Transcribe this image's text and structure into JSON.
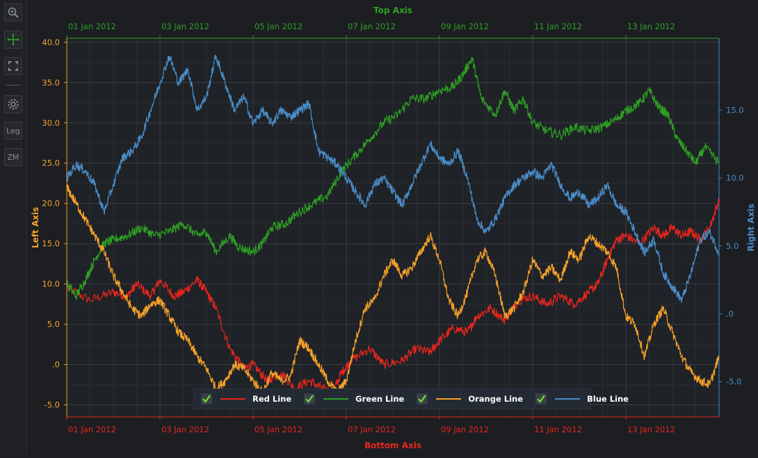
{
  "toolbar": {
    "buttons": [
      {
        "icon": "zoom-icon",
        "label": ""
      },
      {
        "icon": "pan-icon",
        "label": ""
      },
      {
        "icon": "fit-icon",
        "label": ""
      },
      {
        "icon": "gear-icon",
        "label": ""
      },
      {
        "icon": "legend-toggle",
        "label": "Leg"
      },
      {
        "icon": "zoom-mode-toggle",
        "label": "ZM"
      }
    ]
  },
  "colors": {
    "red": "#e8261e",
    "green": "#2ea024",
    "orange": "#f5a12b",
    "blue": "#4a8cc9",
    "background": "#1c1e22",
    "grid": "#3a3d42"
  },
  "chart_data": {
    "type": "line",
    "x_unit": "days",
    "x_range": [
      0,
      14
    ],
    "top_axis": {
      "title": "Top Axis",
      "color": "#2ea024"
    },
    "bottom_axis": {
      "title": "Bottom Axis",
      "color": "#e8261e"
    },
    "left_axis": {
      "title": "Left Axis",
      "color": "#f5a12b",
      "range": [
        -6.5,
        40.5
      ]
    },
    "right_axis": {
      "title": "Right Axis",
      "color": "#4a8cc9",
      "range": [
        -7.6,
        20.3
      ]
    },
    "x_ticks": [
      {
        "x": 0,
        "label": "01 Jan 2012"
      },
      {
        "x": 2,
        "label": "03 Jan 2012"
      },
      {
        "x": 4,
        "label": "05 Jan 2012"
      },
      {
        "x": 6,
        "label": "07 Jan 2012"
      },
      {
        "x": 8,
        "label": "09 Jan 2012"
      },
      {
        "x": 10,
        "label": "11 Jan 2012"
      },
      {
        "x": 12,
        "label": "13 Jan 2012"
      }
    ],
    "left_ticks": [
      {
        "v": -5,
        "label": "-5.0"
      },
      {
        "v": 0,
        "label": ".0"
      },
      {
        "v": 5,
        "label": "5.0"
      },
      {
        "v": 10,
        "label": "10.0"
      },
      {
        "v": 15,
        "label": "15.0"
      },
      {
        "v": 20,
        "label": "20.0"
      },
      {
        "v": 25,
        "label": "25.0"
      },
      {
        "v": 30,
        "label": "30.0"
      },
      {
        "v": 35,
        "label": "35.0"
      },
      {
        "v": 40,
        "label": "40.0"
      }
    ],
    "right_ticks": [
      {
        "v": -5,
        "label": "-5.0"
      },
      {
        "v": 0,
        "label": ".0"
      },
      {
        "v": 5,
        "label": "5.0"
      },
      {
        "v": 10,
        "label": "10.0"
      },
      {
        "v": 15,
        "label": "15.0"
      }
    ],
    "series": [
      {
        "name": "Red Line",
        "color": "#e8261e",
        "axis": "left",
        "values": [
          [
            0,
            9.5
          ],
          [
            0.5,
            8
          ],
          [
            1,
            9
          ],
          [
            1.3,
            8.5
          ],
          [
            1.5,
            10
          ],
          [
            1.8,
            8.5
          ],
          [
            2,
            10.5
          ],
          [
            2.3,
            8.5
          ],
          [
            2.5,
            9
          ],
          [
            2.8,
            10.5
          ],
          [
            3,
            9
          ],
          [
            3.2,
            7
          ],
          [
            3.5,
            2
          ],
          [
            3.8,
            -0.5
          ],
          [
            4,
            0
          ],
          [
            4.3,
            -2
          ],
          [
            4.6,
            -1
          ],
          [
            4.9,
            -3
          ],
          [
            5.2,
            -2
          ],
          [
            5.5,
            -3
          ],
          [
            5.7,
            -3.5
          ],
          [
            5.9,
            -1
          ],
          [
            6.1,
            0.5
          ],
          [
            6.5,
            2
          ],
          [
            6.8,
            0
          ],
          [
            7.2,
            0.5
          ],
          [
            7.5,
            2
          ],
          [
            7.8,
            1.5
          ],
          [
            8,
            3
          ],
          [
            8.3,
            4.5
          ],
          [
            8.6,
            4
          ],
          [
            8.8,
            6
          ],
          [
            9.1,
            7
          ],
          [
            9.4,
            5.5
          ],
          [
            9.7,
            8
          ],
          [
            10,
            8.5
          ],
          [
            10.3,
            7.5
          ],
          [
            10.6,
            8.5
          ],
          [
            10.9,
            7.5
          ],
          [
            11.2,
            9
          ],
          [
            11.4,
            10
          ],
          [
            11.6,
            13
          ],
          [
            11.8,
            15.5
          ],
          [
            12,
            16
          ],
          [
            12.3,
            15
          ],
          [
            12.6,
            17
          ],
          [
            12.8,
            16
          ],
          [
            13,
            17
          ],
          [
            13.2,
            16
          ],
          [
            13.4,
            16.5
          ],
          [
            13.6,
            15.5
          ],
          [
            13.8,
            17
          ],
          [
            14,
            20.5
          ]
        ]
      },
      {
        "name": "Green Line",
        "color": "#2ea024",
        "axis": "left",
        "values": [
          [
            0,
            10
          ],
          [
            0.2,
            8.5
          ],
          [
            0.4,
            10.5
          ],
          [
            0.6,
            13
          ],
          [
            0.8,
            15
          ],
          [
            1,
            15.5
          ],
          [
            1.3,
            16
          ],
          [
            1.6,
            17
          ],
          [
            1.9,
            16
          ],
          [
            2.2,
            16.5
          ],
          [
            2.5,
            17.5
          ],
          [
            2.8,
            16
          ],
          [
            3,
            16.5
          ],
          [
            3.2,
            14
          ],
          [
            3.5,
            16
          ],
          [
            3.7,
            14.5
          ],
          [
            4,
            14
          ],
          [
            4.2,
            15
          ],
          [
            4.4,
            17
          ],
          [
            4.7,
            17.5
          ],
          [
            5,
            19
          ],
          [
            5.3,
            20
          ],
          [
            5.6,
            21
          ],
          [
            5.9,
            24
          ],
          [
            6.2,
            26
          ],
          [
            6.5,
            28
          ],
          [
            6.8,
            30
          ],
          [
            7.1,
            31
          ],
          [
            7.4,
            33
          ],
          [
            7.7,
            33
          ],
          [
            8,
            34
          ],
          [
            8.3,
            34.5
          ],
          [
            8.5,
            36
          ],
          [
            8.7,
            38
          ],
          [
            8.9,
            33
          ],
          [
            9.2,
            31
          ],
          [
            9.4,
            34
          ],
          [
            9.6,
            31.5
          ],
          [
            9.8,
            33
          ],
          [
            10,
            30
          ],
          [
            10.3,
            29
          ],
          [
            10.6,
            28.5
          ],
          [
            10.9,
            29.5
          ],
          [
            11.2,
            29
          ],
          [
            11.5,
            29.5
          ],
          [
            11.8,
            30.5
          ],
          [
            12,
            31.5
          ],
          [
            12.3,
            32.5
          ],
          [
            12.5,
            34
          ],
          [
            12.7,
            32
          ],
          [
            12.9,
            31
          ],
          [
            13.1,
            28
          ],
          [
            13.3,
            26.5
          ],
          [
            13.5,
            25
          ],
          [
            13.7,
            27
          ],
          [
            14,
            25
          ]
        ]
      },
      {
        "name": "Orange Line",
        "color": "#f5a12b",
        "axis": "left",
        "values": [
          [
            0,
            22
          ],
          [
            0.2,
            20
          ],
          [
            0.4,
            18
          ],
          [
            0.6,
            16
          ],
          [
            0.8,
            14
          ],
          [
            1,
            11
          ],
          [
            1.2,
            9
          ],
          [
            1.4,
            7
          ],
          [
            1.6,
            6
          ],
          [
            1.8,
            7.5
          ],
          [
            2,
            8
          ],
          [
            2.2,
            6
          ],
          [
            2.4,
            4
          ],
          [
            2.6,
            3
          ],
          [
            2.8,
            1
          ],
          [
            3,
            -0.5
          ],
          [
            3.2,
            -3
          ],
          [
            3.4,
            -2
          ],
          [
            3.6,
            0
          ],
          [
            3.8,
            -0.5
          ],
          [
            4,
            -2
          ],
          [
            4.2,
            -3.5
          ],
          [
            4.4,
            -1
          ],
          [
            4.6,
            -2
          ],
          [
            4.8,
            -1.5
          ],
          [
            5,
            3
          ],
          [
            5.2,
            2
          ],
          [
            5.4,
            0
          ],
          [
            5.6,
            -2
          ],
          [
            5.8,
            -3.5
          ],
          [
            6,
            -2
          ],
          [
            6.2,
            3
          ],
          [
            6.4,
            7
          ],
          [
            6.6,
            8
          ],
          [
            6.8,
            11
          ],
          [
            7,
            13
          ],
          [
            7.2,
            11
          ],
          [
            7.4,
            12
          ],
          [
            7.6,
            14
          ],
          [
            7.8,
            16
          ],
          [
            8,
            13
          ],
          [
            8.2,
            8
          ],
          [
            8.4,
            6
          ],
          [
            8.6,
            9
          ],
          [
            8.8,
            13
          ],
          [
            9,
            14
          ],
          [
            9.2,
            11
          ],
          [
            9.4,
            6
          ],
          [
            9.6,
            7
          ],
          [
            9.8,
            9
          ],
          [
            10,
            13
          ],
          [
            10.2,
            11
          ],
          [
            10.4,
            12
          ],
          [
            10.6,
            10.5
          ],
          [
            10.8,
            14
          ],
          [
            11,
            13
          ],
          [
            11.2,
            16
          ],
          [
            11.4,
            15
          ],
          [
            11.6,
            14
          ],
          [
            11.8,
            12
          ],
          [
            12,
            6
          ],
          [
            12.2,
            5
          ],
          [
            12.4,
            1
          ],
          [
            12.6,
            5
          ],
          [
            12.8,
            7
          ],
          [
            13,
            4
          ],
          [
            13.2,
            1
          ],
          [
            13.4,
            -1
          ],
          [
            13.6,
            -2
          ],
          [
            13.8,
            -2.5
          ],
          [
            14,
            1
          ]
        ]
      },
      {
        "name": "Blue Line",
        "color": "#4a8cc9",
        "axis": "right",
        "values": [
          [
            0,
            10
          ],
          [
            0.2,
            11
          ],
          [
            0.4,
            10.5
          ],
          [
            0.6,
            9.5
          ],
          [
            0.8,
            7.5
          ],
          [
            1,
            9.5
          ],
          [
            1.2,
            11.5
          ],
          [
            1.4,
            12
          ],
          [
            1.6,
            13
          ],
          [
            1.8,
            15
          ],
          [
            2,
            17
          ],
          [
            2.2,
            19
          ],
          [
            2.4,
            17
          ],
          [
            2.6,
            18
          ],
          [
            2.8,
            15
          ],
          [
            3,
            16
          ],
          [
            3.2,
            19
          ],
          [
            3.4,
            17
          ],
          [
            3.6,
            15
          ],
          [
            3.8,
            16
          ],
          [
            4,
            14
          ],
          [
            4.2,
            15
          ],
          [
            4.4,
            14
          ],
          [
            4.6,
            15
          ],
          [
            4.8,
            14.5
          ],
          [
            5,
            15
          ],
          [
            5.2,
            15.5
          ],
          [
            5.4,
            12
          ],
          [
            5.6,
            11.5
          ],
          [
            5.8,
            11
          ],
          [
            6,
            10
          ],
          [
            6.2,
            9
          ],
          [
            6.4,
            8
          ],
          [
            6.6,
            9.5
          ],
          [
            6.8,
            10
          ],
          [
            7,
            9
          ],
          [
            7.2,
            8
          ],
          [
            7.4,
            9.5
          ],
          [
            7.6,
            11
          ],
          [
            7.8,
            12.5
          ],
          [
            8,
            11.5
          ],
          [
            8.2,
            11
          ],
          [
            8.4,
            12
          ],
          [
            8.6,
            10
          ],
          [
            8.8,
            7
          ],
          [
            9,
            6
          ],
          [
            9.2,
            7
          ],
          [
            9.4,
            8.5
          ],
          [
            9.6,
            9.5
          ],
          [
            9.8,
            10
          ],
          [
            10,
            10.5
          ],
          [
            10.2,
            10
          ],
          [
            10.4,
            11
          ],
          [
            10.6,
            9.5
          ],
          [
            10.8,
            8.5
          ],
          [
            11,
            9
          ],
          [
            11.2,
            8
          ],
          [
            11.4,
            8.5
          ],
          [
            11.6,
            9.5
          ],
          [
            11.8,
            8
          ],
          [
            12,
            7.5
          ],
          [
            12.2,
            6
          ],
          [
            12.4,
            4.5
          ],
          [
            12.6,
            5.5
          ],
          [
            12.8,
            3
          ],
          [
            13,
            2
          ],
          [
            13.2,
            1
          ],
          [
            13.4,
            3
          ],
          [
            13.6,
            5.5
          ],
          [
            13.8,
            6
          ],
          [
            14,
            4.5
          ]
        ]
      }
    ],
    "legend": {
      "placement": "bottom-center"
    },
    "grid": true
  }
}
